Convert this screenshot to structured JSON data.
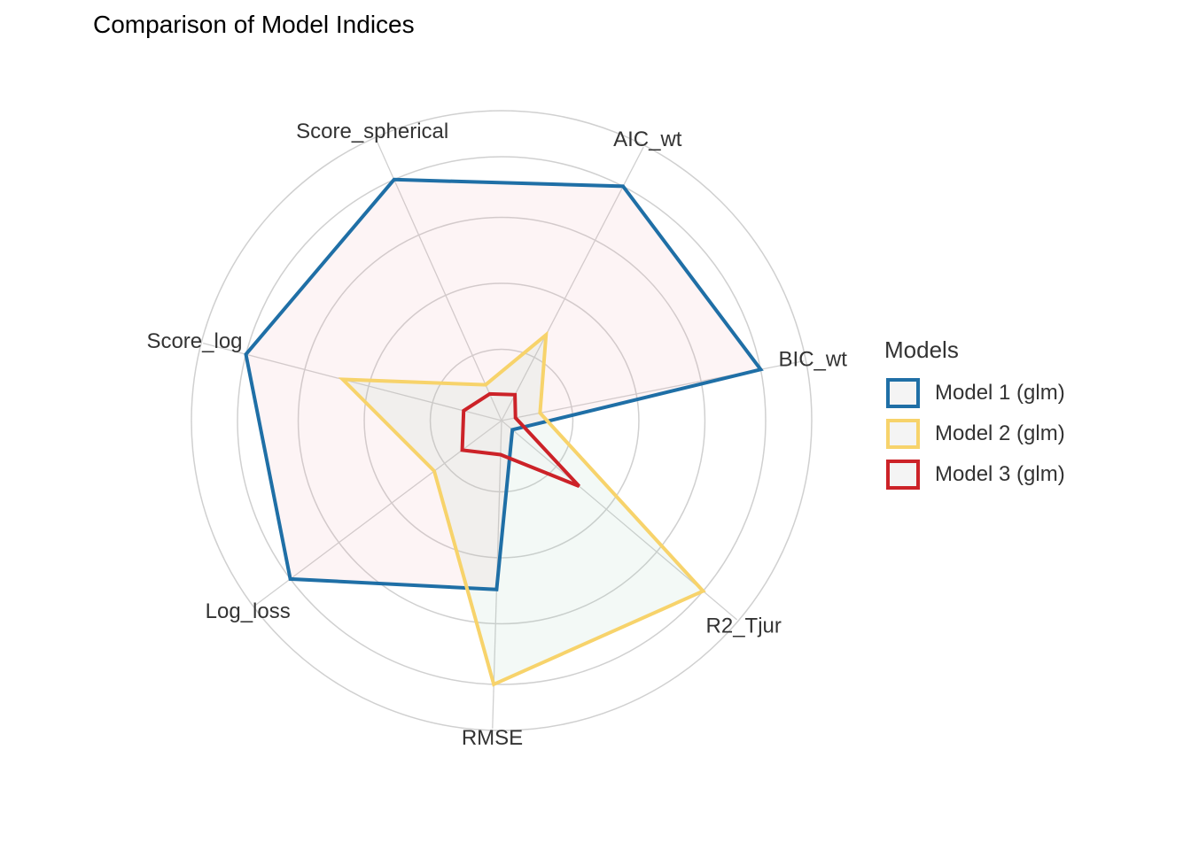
{
  "chart_data": {
    "type": "radar",
    "title": "Comparison of Model Indices",
    "axes": [
      "AIC_wt",
      "BIC_wt",
      "R2_Tjur",
      "RMSE",
      "Log_loss",
      "Score_log",
      "Score_spherical"
    ],
    "rlim": [
      0,
      1
    ],
    "grid": true,
    "legend": {
      "title": "Models",
      "position": "right"
    },
    "series": [
      {
        "name": "Model 1 (glm)",
        "color": "#1f6fa6",
        "fill": "#f2a6b0",
        "values": [
          1.0,
          1.0,
          0.0,
          0.62,
          1.0,
          1.0,
          1.0
        ]
      },
      {
        "name": "Model 2 (glm)",
        "color": "#f7d36b",
        "fill": "#9fd1b4",
        "values": [
          0.33,
          0.1,
          1.0,
          1.0,
          0.28,
          0.6,
          0.1
        ]
      },
      {
        "name": "Model 3 (glm)",
        "color": "#cc2228",
        "fill": "#e8e8e8",
        "values": [
          0.06,
          0.0,
          0.35,
          0.08,
          0.14,
          0.1,
          0.06
        ]
      }
    ]
  }
}
